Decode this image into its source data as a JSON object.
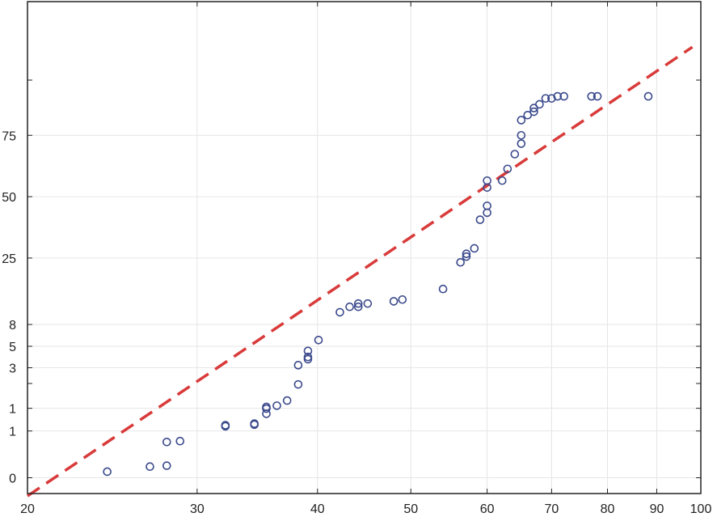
{
  "chart_data": {
    "type": "scatter",
    "title": "",
    "xlabel": "",
    "ylabel": "",
    "xscale": "log",
    "xlim": [
      20,
      100
    ],
    "x_ticks": [
      {
        "value": 20,
        "label": "20"
      },
      {
        "value": 30,
        "label": "30"
      },
      {
        "value": 40,
        "label": "40"
      },
      {
        "value": 50,
        "label": "50"
      },
      {
        "value": 60,
        "label": "60"
      },
      {
        "value": 70,
        "label": "70"
      },
      {
        "value": 80,
        "label": "80"
      },
      {
        "value": 90,
        "label": "90"
      },
      {
        "value": 100,
        "label": "100"
      }
    ],
    "yscale": "probability",
    "ylim": [
      0.055,
      98.4
    ],
    "y_ticks": [
      {
        "value": 0.1,
        "label": "0"
      },
      {
        "value": 0.5,
        "label": "1"
      },
      {
        "value": 1,
        "label": "1"
      },
      {
        "value": 3,
        "label": "3"
      },
      {
        "value": 5,
        "label": "5"
      },
      {
        "value": 8,
        "label": "8"
      },
      {
        "value": 25,
        "label": "25"
      },
      {
        "value": 50,
        "label": "50"
      },
      {
        "value": 75,
        "label": "75"
      }
    ],
    "y_minor_ticks": [
      2,
      90
    ],
    "grid": true,
    "legend": "none",
    "colors": {
      "points": "#3b4a8c",
      "fit_line": "#d93a3a",
      "grid": "#e6e6e6",
      "axis": "#222222"
    },
    "series": [
      {
        "kind": "points",
        "points": [
          {
            "x": 24.2,
            "y": 0.125
          },
          {
            "x": 26.8,
            "y": 0.15
          },
          {
            "x": 27.9,
            "y": 0.155
          },
          {
            "x": 27.9,
            "y": 0.35
          },
          {
            "x": 28.8,
            "y": 0.36
          },
          {
            "x": 32.1,
            "y": 0.58
          },
          {
            "x": 32.1,
            "y": 0.6
          },
          {
            "x": 34.4,
            "y": 0.61
          },
          {
            "x": 34.4,
            "y": 0.63
          },
          {
            "x": 35.4,
            "y": 0.85
          },
          {
            "x": 35.4,
            "y": 0.99
          },
          {
            "x": 35.4,
            "y": 1.04
          },
          {
            "x": 36.3,
            "y": 1.08
          },
          {
            "x": 37.2,
            "y": 1.25
          },
          {
            "x": 38.2,
            "y": 1.95
          },
          {
            "x": 38.2,
            "y": 3.2
          },
          {
            "x": 39.1,
            "y": 3.7
          },
          {
            "x": 39.1,
            "y": 3.9
          },
          {
            "x": 39.1,
            "y": 4.5
          },
          {
            "x": 40.1,
            "y": 5.75
          },
          {
            "x": 42.2,
            "y": 10.2
          },
          {
            "x": 43.2,
            "y": 11.3
          },
          {
            "x": 44.1,
            "y": 11.3
          },
          {
            "x": 44.1,
            "y": 12.0
          },
          {
            "x": 45.1,
            "y": 12.0
          },
          {
            "x": 48.0,
            "y": 12.5
          },
          {
            "x": 49.0,
            "y": 12.9
          },
          {
            "x": 54.0,
            "y": 15.5
          },
          {
            "x": 56.3,
            "y": 23.5
          },
          {
            "x": 57.1,
            "y": 25.5
          },
          {
            "x": 57.1,
            "y": 26.5
          },
          {
            "x": 58.2,
            "y": 28.5
          },
          {
            "x": 59.0,
            "y": 40.0
          },
          {
            "x": 60.0,
            "y": 43.0
          },
          {
            "x": 60.0,
            "y": 46.0
          },
          {
            "x": 60.0,
            "y": 54.0
          },
          {
            "x": 60.0,
            "y": 57.0
          },
          {
            "x": 62.2,
            "y": 57.0
          },
          {
            "x": 63.0,
            "y": 62.0
          },
          {
            "x": 64.1,
            "y": 68.0
          },
          {
            "x": 65.1,
            "y": 72.0
          },
          {
            "x": 65.1,
            "y": 75.0
          },
          {
            "x": 65.1,
            "y": 80.0
          },
          {
            "x": 66.1,
            "y": 81.5
          },
          {
            "x": 67.1,
            "y": 82.5
          },
          {
            "x": 67.1,
            "y": 83.5
          },
          {
            "x": 68.0,
            "y": 84.5
          },
          {
            "x": 69.0,
            "y": 86.0
          },
          {
            "x": 70.0,
            "y": 86.0
          },
          {
            "x": 71.0,
            "y": 86.5
          },
          {
            "x": 72.1,
            "y": 86.5
          },
          {
            "x": 77.0,
            "y": 86.5
          },
          {
            "x": 78.1,
            "y": 86.5
          },
          {
            "x": 88.2,
            "y": 86.5
          }
        ]
      },
      {
        "kind": "fit-line",
        "style": "dashed",
        "points": [
          {
            "x": 20,
            "y": 0.05
          },
          {
            "x": 98,
            "y": 95
          }
        ]
      }
    ]
  }
}
